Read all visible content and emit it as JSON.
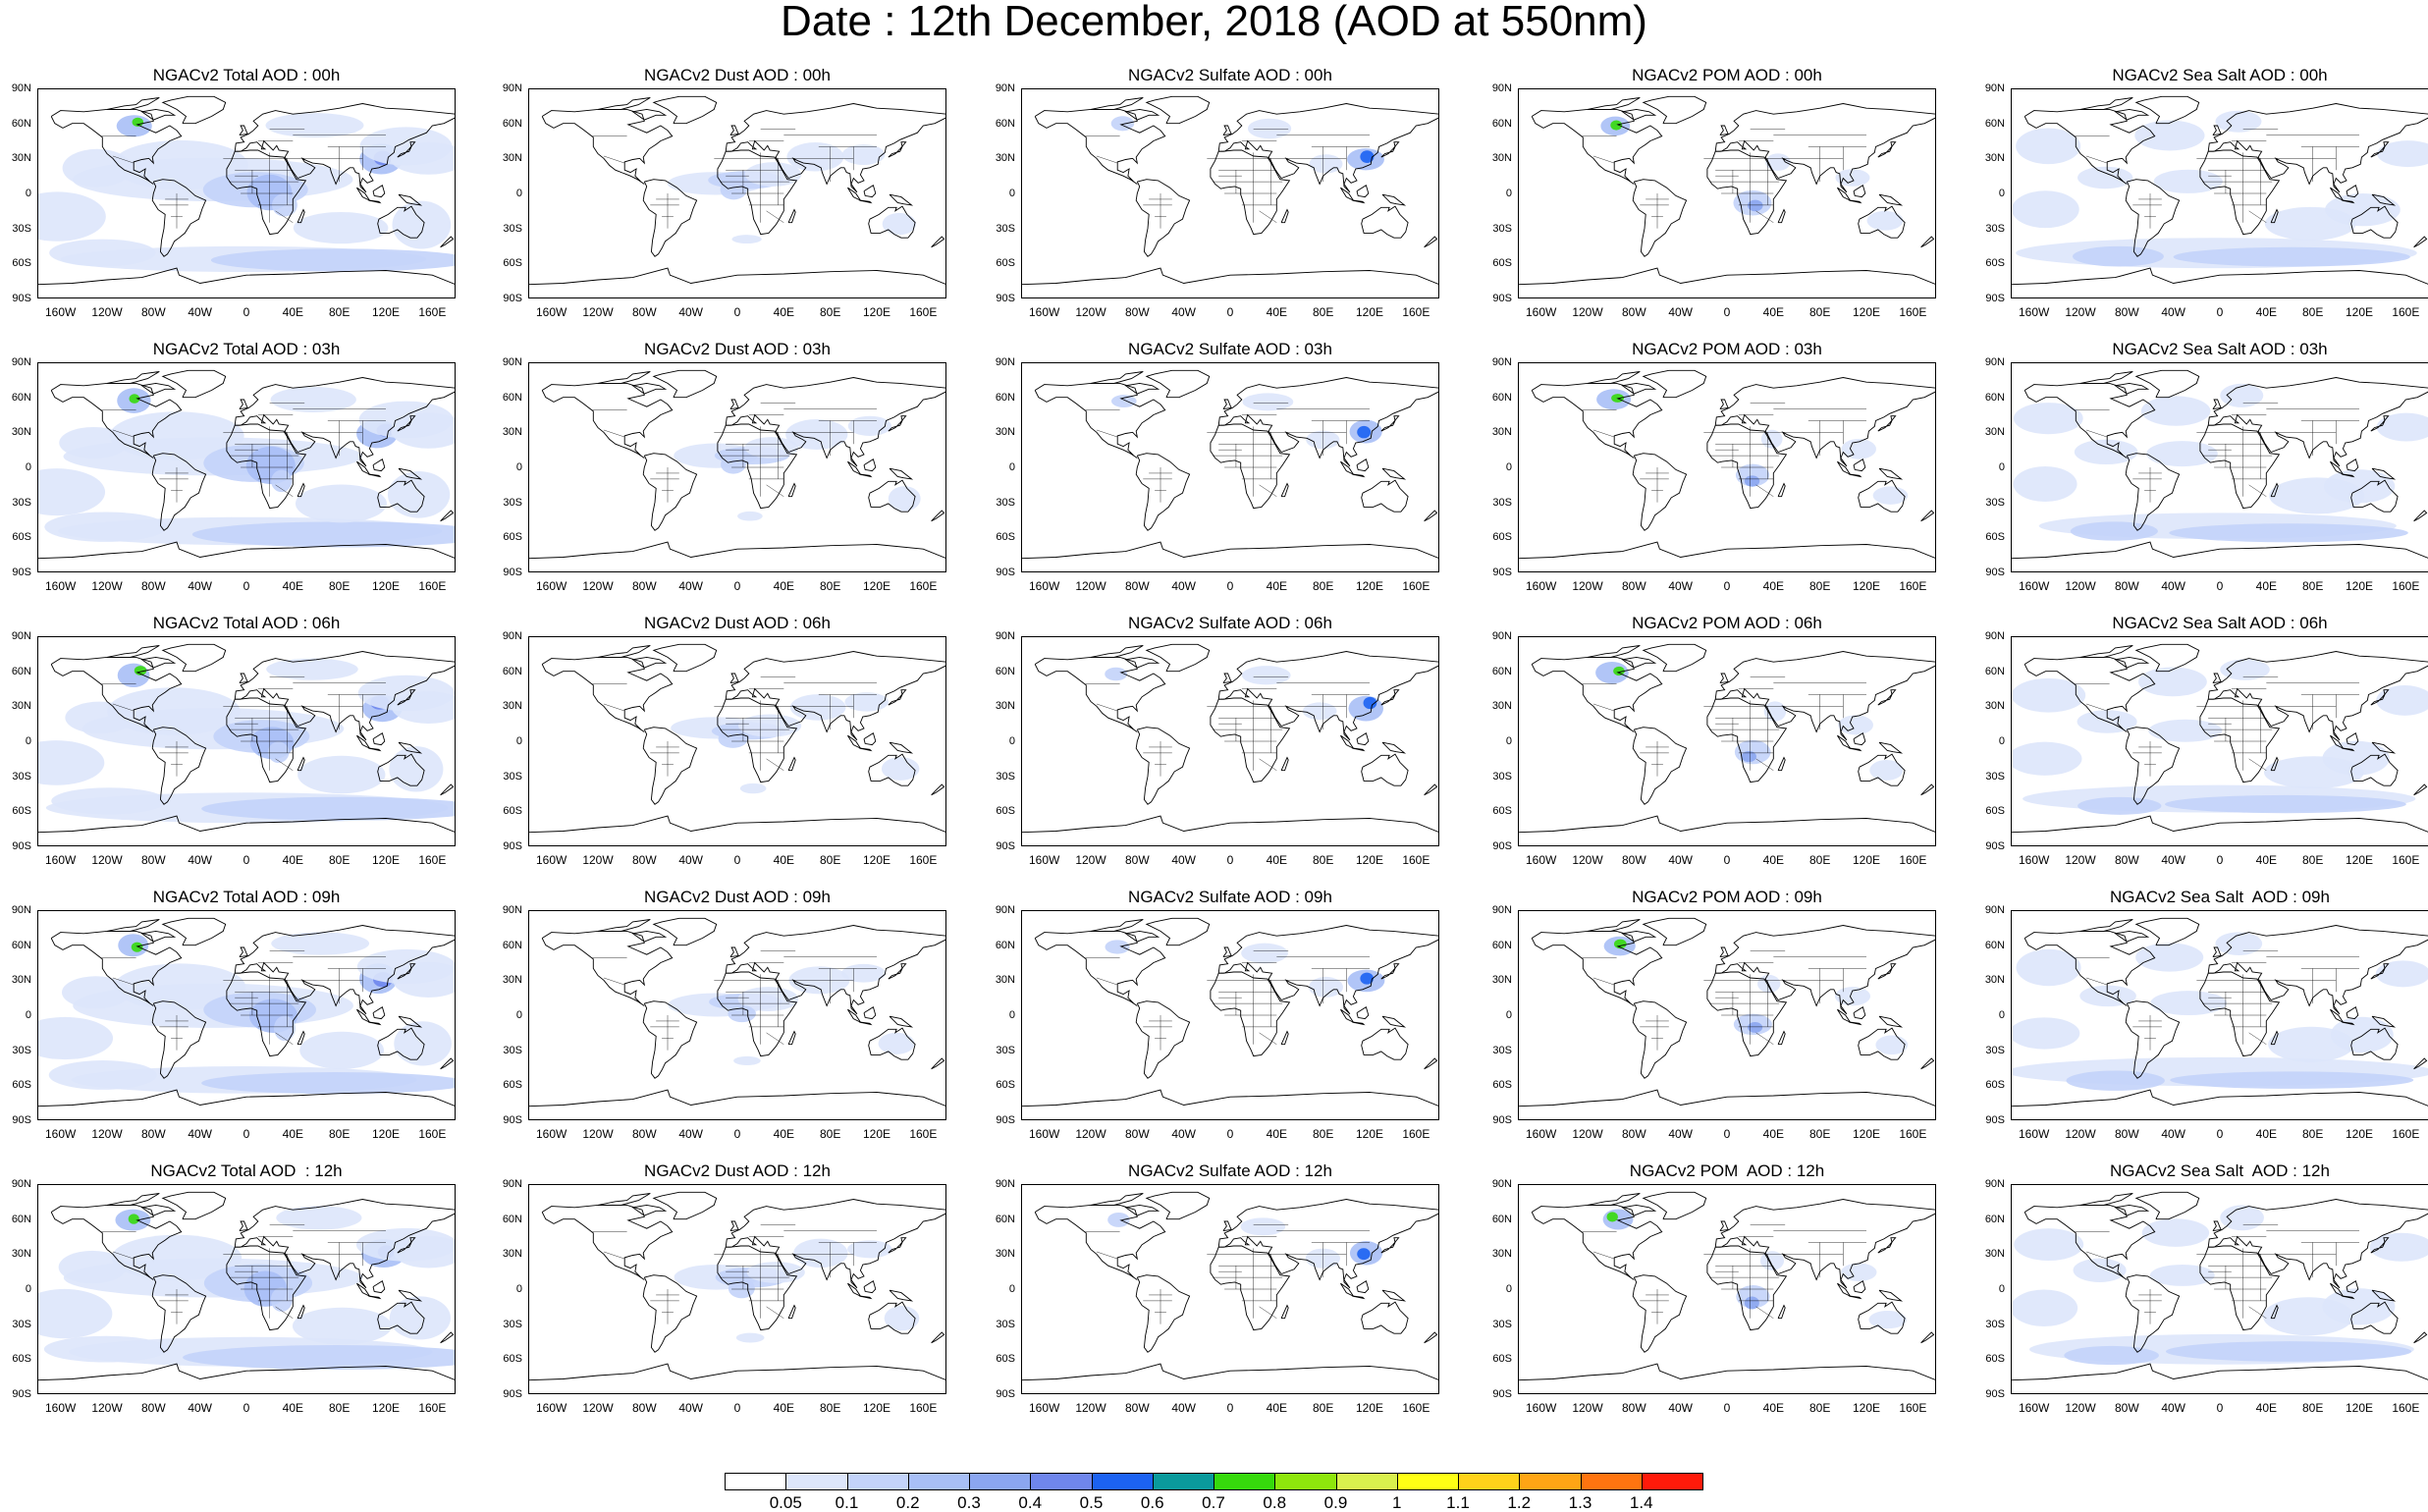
{
  "title": "Date : 12th December, 2018 (AOD at 550nm)",
  "rows": [
    "00h",
    "03h",
    "06h",
    "09h",
    "12h"
  ],
  "columns": [
    "Total",
    "Dust",
    "Sulfate",
    "POM",
    "Sea Salt"
  ],
  "panel_titles": [
    [
      "NGACv2 Total AOD : 00h",
      "NGACv2 Dust AOD : 00h",
      "NGACv2 Sulfate AOD : 00h",
      "NGACv2 POM AOD : 00h",
      "NGACv2 Sea Salt AOD : 00h"
    ],
    [
      "NGACv2 Total AOD : 03h",
      "NGACv2 Dust AOD : 03h",
      "NGACv2 Sulfate AOD : 03h",
      "NGACv2 POM AOD : 03h",
      "NGACv2 Sea Salt AOD : 03h"
    ],
    [
      "NGACv2 Total AOD : 06h",
      "NGACv2 Dust AOD : 06h",
      "NGACv2 Sulfate AOD : 06h",
      "NGACv2 POM AOD : 06h",
      "NGACv2 Sea Salt AOD : 06h"
    ],
    [
      "NGACv2 Total AOD : 09h",
      "NGACv2 Dust AOD : 09h",
      "NGACv2 Sulfate AOD : 09h",
      "NGACv2 POM AOD : 09h",
      "NGACv2 Sea Salt  AOD : 09h"
    ],
    [
      "NGACv2 Total AOD  : 12h",
      "NGACv2 Dust AOD : 12h",
      "NGACv2 Sulfate AOD : 12h",
      "NGACv2 POM  AOD : 12h",
      "NGACv2 Sea Salt  AOD : 12h"
    ]
  ],
  "lat_labels": [
    "90N",
    "60N",
    "30N",
    "0",
    "30S",
    "60S",
    "90S"
  ],
  "lat_values": [
    90,
    60,
    30,
    0,
    -30,
    -60,
    -90
  ],
  "lon_labels": [
    "160W",
    "120W",
    "80W",
    "40W",
    "0",
    "40E",
    "80E",
    "120E",
    "160E"
  ],
  "lon_values": [
    -160,
    -120,
    -80,
    -40,
    0,
    40,
    80,
    120,
    160
  ],
  "colorbar": {
    "labels": [
      "0.05",
      "0.1",
      "0.2",
      "0.3",
      "0.4",
      "0.5",
      "0.6",
      "0.7",
      "0.8",
      "0.9",
      "1",
      "1.1",
      "1.2",
      "1.3",
      "1.4"
    ],
    "colors": [
      "#ffffff",
      "#dde6fb",
      "#c3d3fa",
      "#a8bff6",
      "#8ba6f0",
      "#6f86ec",
      "#1c62f2",
      "#0a9a9c",
      "#36d90c",
      "#8ee60c",
      "#d9f04d",
      "#ffff15",
      "#ffd21a",
      "#ffa515",
      "#ff7410",
      "#ff1a0a"
    ]
  }
}
